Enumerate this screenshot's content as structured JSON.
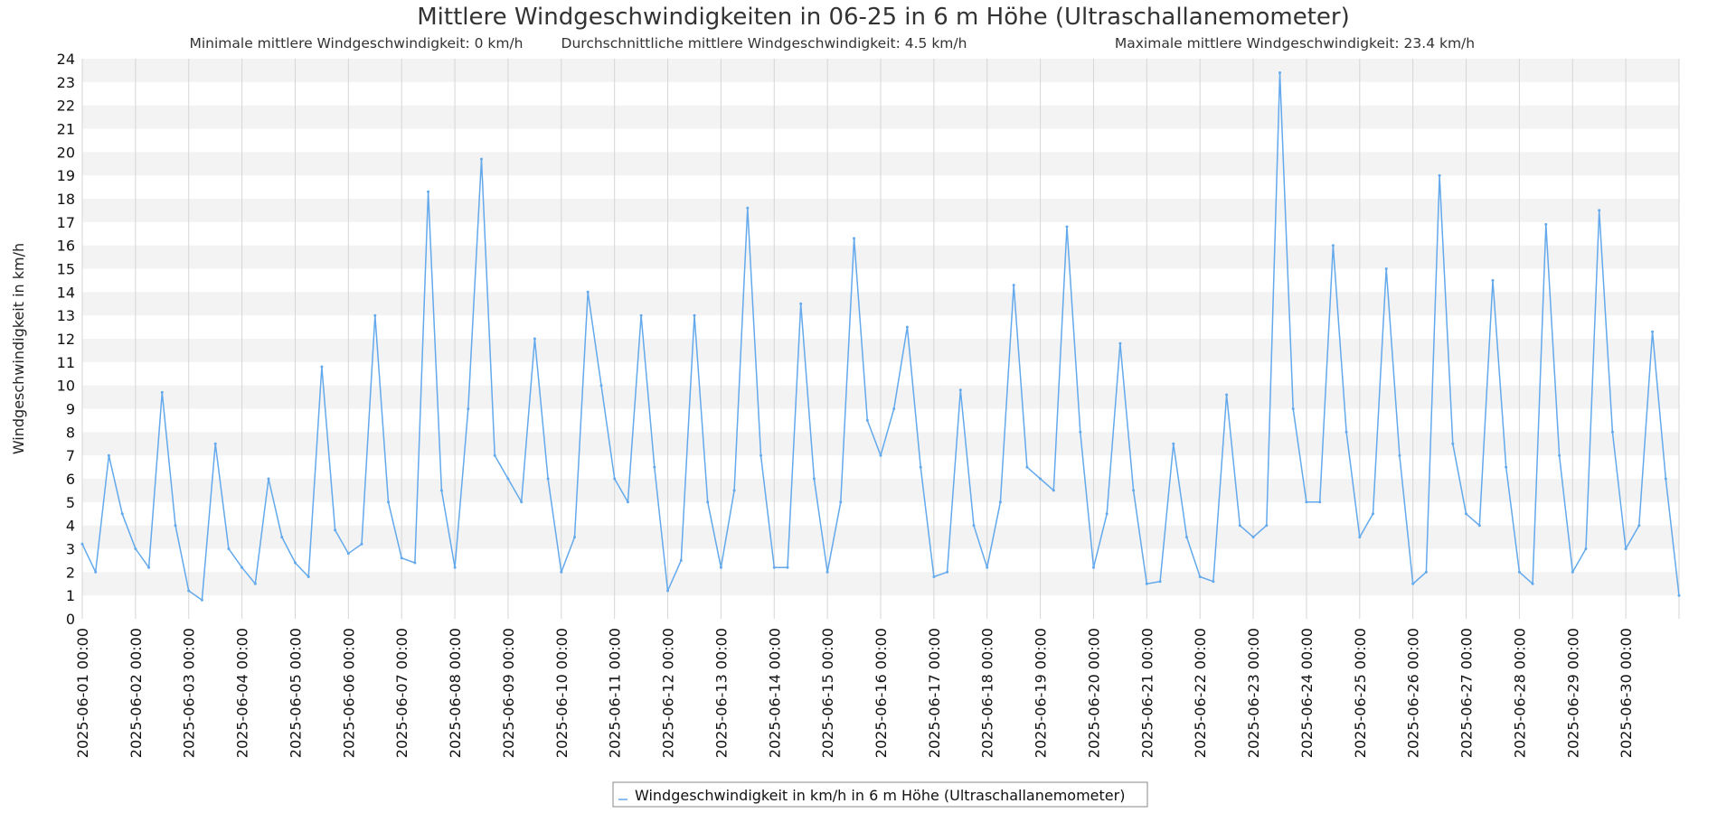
{
  "chart_data": {
    "type": "line",
    "title": "Mittlere Windgeschwindigkeiten in 06-25 in 6 m Höhe (Ultraschallanemometer)",
    "subtitle_items": [
      "Minimale mittlere Windgeschwindigkeit: 0 km/h",
      "Durchschnittliche mittlere Windgeschwindigkeit: 4.5 km/h",
      "Maximale mittlere Windgeschwindigkeit: 23.4 km/h"
    ],
    "xlabel": "",
    "ylabel": "Windgeschwindigkeit in km/h",
    "ylim": [
      0,
      24
    ],
    "yticks": [
      0,
      1,
      2,
      3,
      4,
      5,
      6,
      7,
      8,
      9,
      10,
      11,
      12,
      13,
      14,
      15,
      16,
      17,
      18,
      19,
      20,
      21,
      22,
      23,
      24
    ],
    "xlim": [
      "2025-06-01 00:00",
      "2025-07-01 00:00"
    ],
    "xticks": [
      "2025-06-01 00:00",
      "2025-06-02 00:00",
      "2025-06-03 00:00",
      "2025-06-04 00:00",
      "2025-06-05 00:00",
      "2025-06-06 00:00",
      "2025-06-07 00:00",
      "2025-06-08 00:00",
      "2025-06-09 00:00",
      "2025-06-10 00:00",
      "2025-06-11 00:00",
      "2025-06-12 00:00",
      "2025-06-13 00:00",
      "2025-06-14 00:00",
      "2025-06-15 00:00",
      "2025-06-16 00:00",
      "2025-06-17 00:00",
      "2025-06-18 00:00",
      "2025-06-19 00:00",
      "2025-06-20 00:00",
      "2025-06-21 00:00",
      "2025-06-22 00:00",
      "2025-06-23 00:00",
      "2025-06-24 00:00",
      "2025-06-25 00:00",
      "2025-06-26 00:00",
      "2025-06-27 00:00",
      "2025-06-28 00:00",
      "2025-06-29 00:00",
      "2025-06-30 00:00"
    ],
    "grid": true,
    "legend_position": "bottom-center",
    "series": [
      {
        "name": "Windgeschwindigkeit in km/h in 6 m Höhe (Ultraschallanemometer)",
        "color": "#63a9ec",
        "x": [
          "2025-06-01 00:00",
          "2025-06-01 06:00",
          "2025-06-01 12:00",
          "2025-06-01 18:00",
          "2025-06-02 00:00",
          "2025-06-02 06:00",
          "2025-06-02 12:00",
          "2025-06-02 18:00",
          "2025-06-03 00:00",
          "2025-06-03 06:00",
          "2025-06-03 12:00",
          "2025-06-03 18:00",
          "2025-06-04 00:00",
          "2025-06-04 06:00",
          "2025-06-04 12:00",
          "2025-06-04 18:00",
          "2025-06-05 00:00",
          "2025-06-05 06:00",
          "2025-06-05 12:00",
          "2025-06-05 18:00",
          "2025-06-06 00:00",
          "2025-06-06 06:00",
          "2025-06-06 12:00",
          "2025-06-06 18:00",
          "2025-06-07 00:00",
          "2025-06-07 06:00",
          "2025-06-07 12:00",
          "2025-06-07 18:00",
          "2025-06-08 00:00",
          "2025-06-08 06:00",
          "2025-06-08 12:00",
          "2025-06-08 18:00",
          "2025-06-09 00:00",
          "2025-06-09 06:00",
          "2025-06-09 12:00",
          "2025-06-09 18:00",
          "2025-06-10 00:00",
          "2025-06-10 06:00",
          "2025-06-10 12:00",
          "2025-06-10 18:00",
          "2025-06-11 00:00",
          "2025-06-11 06:00",
          "2025-06-11 12:00",
          "2025-06-11 18:00",
          "2025-06-12 00:00",
          "2025-06-12 06:00",
          "2025-06-12 12:00",
          "2025-06-12 18:00",
          "2025-06-13 00:00",
          "2025-06-13 06:00",
          "2025-06-13 12:00",
          "2025-06-13 18:00",
          "2025-06-14 00:00",
          "2025-06-14 06:00",
          "2025-06-14 12:00",
          "2025-06-14 18:00",
          "2025-06-15 00:00",
          "2025-06-15 06:00",
          "2025-06-15 12:00",
          "2025-06-15 18:00",
          "2025-06-16 00:00",
          "2025-06-16 06:00",
          "2025-06-16 12:00",
          "2025-06-16 18:00",
          "2025-06-17 00:00",
          "2025-06-17 06:00",
          "2025-06-17 12:00",
          "2025-06-17 18:00",
          "2025-06-18 00:00",
          "2025-06-18 06:00",
          "2025-06-18 12:00",
          "2025-06-18 18:00",
          "2025-06-19 00:00",
          "2025-06-19 06:00",
          "2025-06-19 12:00",
          "2025-06-19 18:00",
          "2025-06-20 00:00",
          "2025-06-20 06:00",
          "2025-06-20 12:00",
          "2025-06-20 18:00",
          "2025-06-21 00:00",
          "2025-06-21 06:00",
          "2025-06-21 12:00",
          "2025-06-21 18:00",
          "2025-06-22 00:00",
          "2025-06-22 06:00",
          "2025-06-22 12:00",
          "2025-06-22 18:00",
          "2025-06-23 00:00",
          "2025-06-23 06:00",
          "2025-06-23 12:00",
          "2025-06-23 18:00",
          "2025-06-24 00:00",
          "2025-06-24 06:00",
          "2025-06-24 12:00",
          "2025-06-24 18:00",
          "2025-06-25 00:00",
          "2025-06-25 06:00",
          "2025-06-25 12:00",
          "2025-06-25 18:00",
          "2025-06-26 00:00",
          "2025-06-26 06:00",
          "2025-06-26 12:00",
          "2025-06-26 18:00",
          "2025-06-27 00:00",
          "2025-06-27 06:00",
          "2025-06-27 12:00",
          "2025-06-27 18:00",
          "2025-06-28 00:00",
          "2025-06-28 06:00",
          "2025-06-28 12:00",
          "2025-06-28 18:00",
          "2025-06-29 00:00",
          "2025-06-29 06:00",
          "2025-06-29 12:00",
          "2025-06-29 18:00",
          "2025-06-30 00:00",
          "2025-06-30 06:00",
          "2025-06-30 12:00",
          "2025-06-30 18:00",
          "2025-07-01 00:00"
        ],
        "y": [
          3.2,
          2.0,
          7.0,
          4.5,
          3.0,
          2.2,
          9.7,
          4.0,
          1.2,
          0.8,
          7.5,
          3.0,
          2.2,
          1.5,
          6.0,
          3.5,
          2.4,
          1.8,
          10.8,
          3.8,
          2.8,
          3.2,
          13.0,
          5.0,
          2.6,
          2.4,
          18.3,
          5.5,
          2.2,
          9.0,
          19.7,
          7.0,
          6.0,
          5.0,
          12.0,
          6.0,
          2.0,
          3.5,
          14.0,
          10.0,
          6.0,
          5.0,
          13.0,
          6.5,
          1.2,
          2.5,
          13.0,
          5.0,
          2.2,
          5.5,
          17.6,
          7.0,
          2.2,
          2.2,
          13.5,
          6.0,
          2.0,
          5.0,
          16.3,
          8.5,
          7.0,
          9.0,
          12.5,
          6.5,
          1.8,
          2.0,
          9.8,
          4.0,
          2.2,
          5.0,
          14.3,
          6.5,
          6.0,
          5.5,
          16.8,
          8.0,
          2.2,
          4.5,
          11.8,
          5.5,
          1.5,
          1.6,
          7.5,
          3.5,
          1.8,
          1.6,
          9.6,
          4.0,
          3.5,
          4.0,
          23.4,
          9.0,
          5.0,
          5.0,
          16.0,
          8.0,
          3.5,
          4.5,
          15.0,
          7.0,
          1.5,
          2.0,
          19.0,
          7.5,
          4.5,
          4.0,
          14.5,
          6.5,
          2.0,
          1.5,
          16.9,
          7.0,
          2.0,
          3.0,
          17.5,
          8.0,
          3.0,
          4.0,
          12.3,
          6.0,
          1.0
        ]
      }
    ]
  }
}
